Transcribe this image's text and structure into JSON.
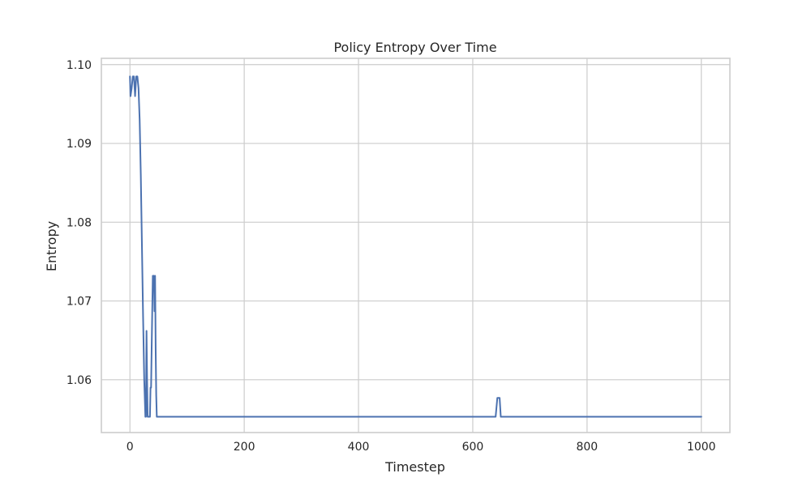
{
  "chart_data": {
    "type": "line",
    "title": "Policy Entropy Over Time",
    "xlabel": "Timestep",
    "ylabel": "Entropy",
    "xlim": [
      -50,
      1050
    ],
    "ylim": [
      1.0533,
      1.1008
    ],
    "xticks": [
      0,
      200,
      400,
      600,
      800,
      1000
    ],
    "xtick_labels": [
      "0",
      "200",
      "400",
      "600",
      "800",
      "1000"
    ],
    "yticks": [
      1.06,
      1.07,
      1.08,
      1.09,
      1.1
    ],
    "ytick_labels": [
      "1.06",
      "1.07",
      "1.08",
      "1.09",
      "1.10"
    ],
    "grid": true,
    "legend": "none",
    "series": [
      {
        "color": "#4c72b0",
        "x": [
          0,
          1,
          3,
          5,
          7,
          9,
          11,
          13,
          15,
          17,
          19,
          21,
          23,
          25,
          27,
          28,
          29,
          30,
          31,
          33,
          35,
          36,
          37,
          38,
          40,
          42,
          43,
          44,
          45,
          46,
          47,
          48,
          50,
          100,
          200,
          300,
          400,
          500,
          600,
          640,
          643,
          645,
          647,
          649,
          651,
          655,
          700,
          800,
          900,
          1000
        ],
        "y": [
          1.0985,
          1.096,
          1.097,
          1.0985,
          1.0985,
          1.096,
          1.0985,
          1.0985,
          1.097,
          1.093,
          1.086,
          1.077,
          1.068,
          1.06,
          1.0553,
          1.0553,
          1.0662,
          1.06,
          1.0553,
          1.0553,
          1.0553,
          1.059,
          1.059,
          1.064,
          1.0732,
          1.0732,
          1.0687,
          1.0732,
          1.064,
          1.058,
          1.0553,
          1.0553,
          1.0553,
          1.0553,
          1.0553,
          1.0553,
          1.0553,
          1.0553,
          1.0553,
          1.0553,
          1.0577,
          1.0577,
          1.0577,
          1.0553,
          1.0553,
          1.0553,
          1.0553,
          1.0553,
          1.0553,
          1.0553
        ]
      }
    ]
  }
}
